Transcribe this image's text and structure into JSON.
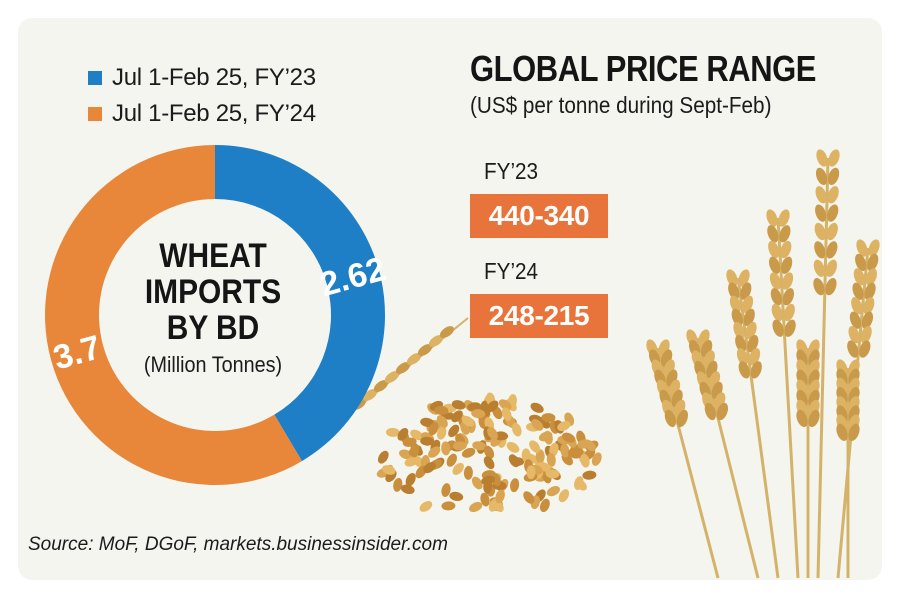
{
  "chart_data": {
    "type": "pie",
    "title": "WHEAT IMPORTS BY BD",
    "subtitle": "(Million Tonnes)",
    "series": [
      {
        "name": "Jul 1-Feb 25, FY’23",
        "value": 2.62,
        "label": "2.62",
        "color": "#1e7fc7"
      },
      {
        "name": "Jul 1-Feb 25, FY’24",
        "value": 3.7,
        "label": "3.7",
        "color": "#e8873a"
      }
    ]
  },
  "price_panel": {
    "title": "GLOBAL PRICE RANGE",
    "subtitle": "(US$ per tonne during Sept-Feb)",
    "rows": [
      {
        "label": "FY’23",
        "range": "440-340"
      },
      {
        "label": "FY’24",
        "range": "248-215"
      }
    ],
    "box_color": "#e8743b"
  },
  "source": "Source: MoF, DGoF, markets.businessinsider.com"
}
